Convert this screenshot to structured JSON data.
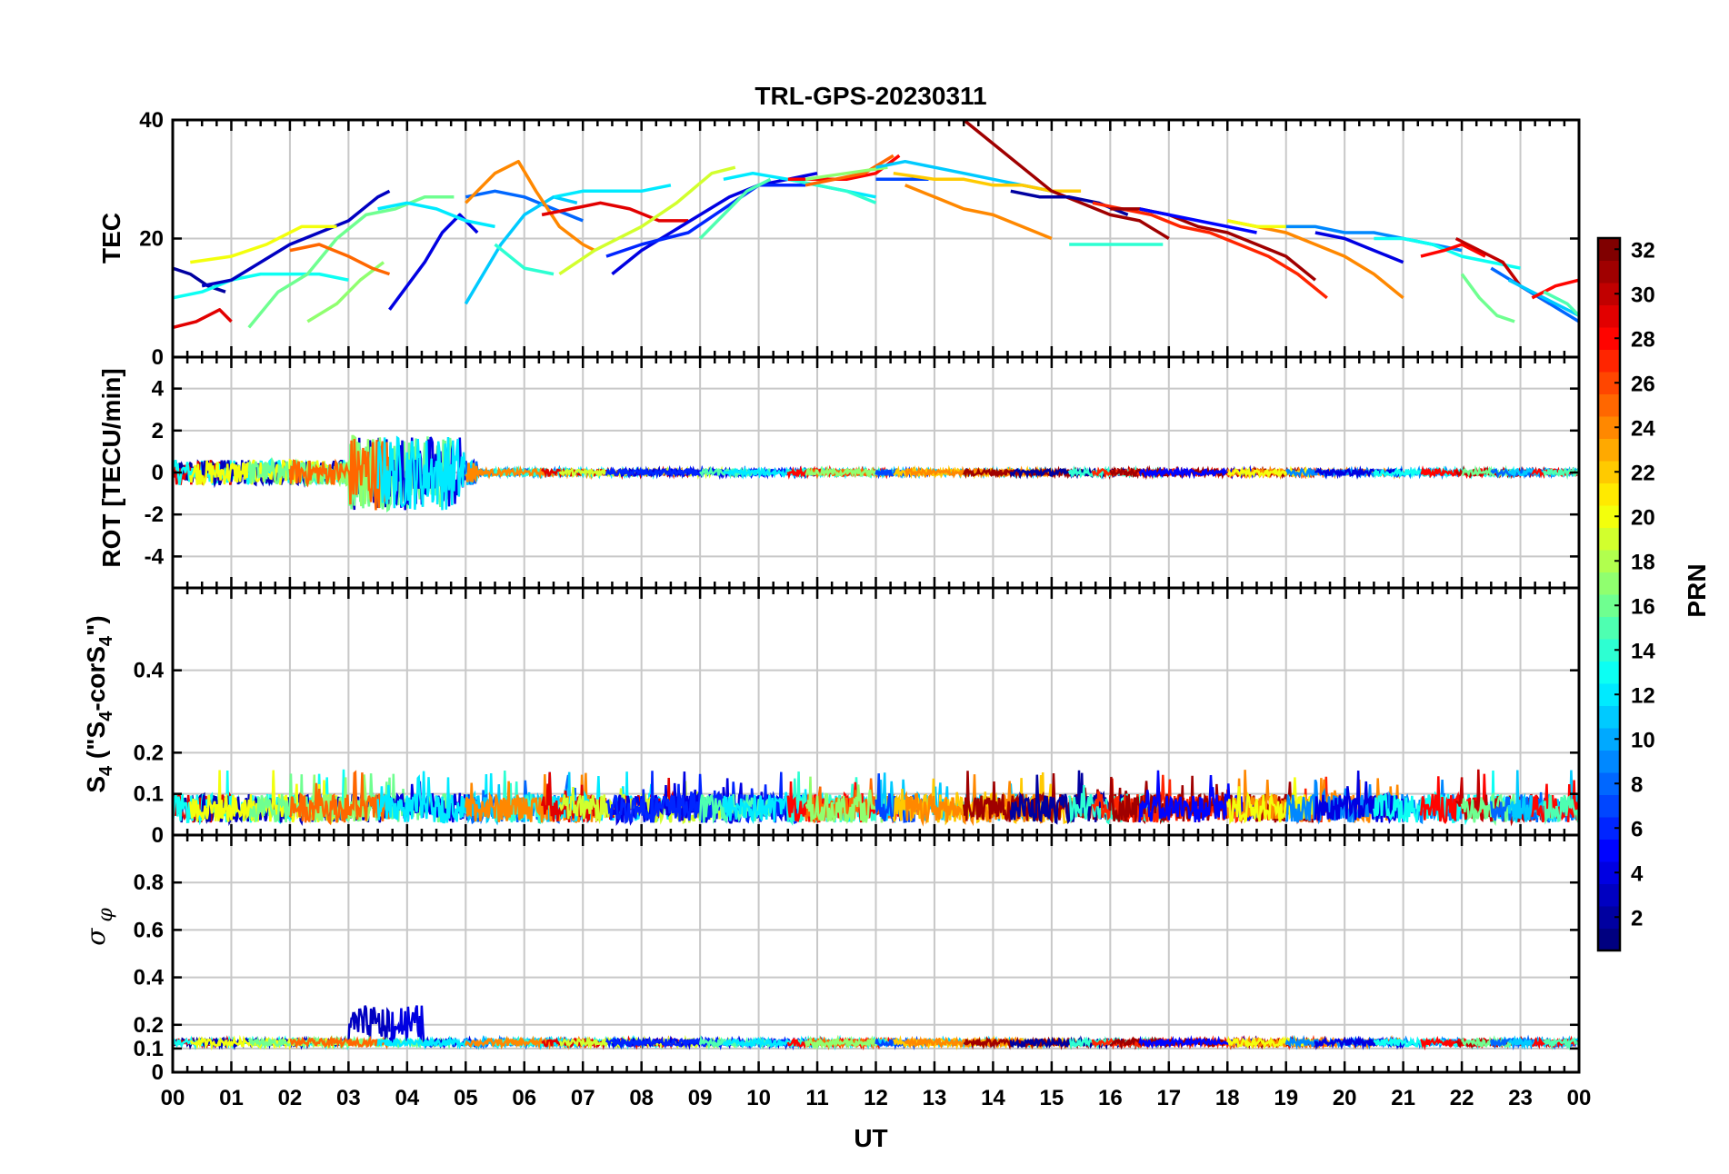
{
  "title": "TRL-GPS-20230311",
  "colorbar": {
    "label": "PRN",
    "min": 1,
    "max": 32,
    "ticks": [
      "2",
      "4",
      "6",
      "8",
      "10",
      "12",
      "14",
      "16",
      "18",
      "20",
      "22",
      "24",
      "26",
      "28",
      "30",
      "32"
    ],
    "colormap": "jet"
  },
  "chart_data": [
    {
      "type": "line",
      "panel": "TEC",
      "ylabel": "TEC",
      "ylim": [
        0,
        40
      ],
      "yticks": [
        "0",
        "20",
        "40"
      ],
      "grid": true,
      "series": [
        {
          "prn": 2,
          "x": [
            0.0,
            0.3,
            0.6,
            0.9
          ],
          "y": [
            15,
            14,
            12,
            11
          ]
        },
        {
          "prn": 29,
          "x": [
            0.0,
            0.4,
            0.8,
            1.0
          ],
          "y": [
            5,
            6,
            8,
            6
          ]
        },
        {
          "prn": 13,
          "x": [
            0.0,
            0.5,
            1.0,
            1.5,
            2.0,
            2.5,
            3.0
          ],
          "y": [
            10,
            11,
            13,
            14,
            14,
            14,
            13
          ]
        },
        {
          "prn": 3,
          "x": [
            0.5,
            1.0,
            1.5,
            2.0,
            2.5,
            3.0,
            3.5,
            3.7
          ],
          "y": [
            12,
            13,
            16,
            19,
            21,
            23,
            27,
            28
          ]
        },
        {
          "prn": 20,
          "x": [
            0.3,
            1.0,
            1.6,
            2.2,
            2.8
          ],
          "y": [
            16,
            17,
            19,
            22,
            22
          ]
        },
        {
          "prn": 16,
          "x": [
            1.3,
            1.8,
            2.3,
            2.8,
            3.3,
            3.8,
            4.3,
            4.8
          ],
          "y": [
            5,
            11,
            14,
            20,
            24,
            25,
            27,
            27
          ]
        },
        {
          "prn": 17,
          "x": [
            2.3,
            2.8,
            3.2,
            3.6
          ],
          "y": [
            6,
            9,
            13,
            16
          ]
        },
        {
          "prn": 25,
          "x": [
            2.0,
            2.5,
            3.0,
            3.4,
            3.7
          ],
          "y": [
            18,
            19,
            17,
            15,
            14
          ]
        },
        {
          "prn": 4,
          "x": [
            3.7,
            4.0,
            4.3,
            4.6,
            4.9,
            5.2
          ],
          "y": [
            8,
            12,
            16,
            21,
            24,
            21
          ]
        },
        {
          "prn": 12,
          "x": [
            3.5,
            4.0,
            4.5,
            5.0,
            5.5
          ],
          "y": [
            25,
            26,
            25,
            23,
            22
          ]
        },
        {
          "prn": 8,
          "x": [
            5.0,
            5.5,
            6.0,
            6.5,
            7.0
          ],
          "y": [
            27,
            28,
            27,
            25,
            23
          ]
        },
        {
          "prn": 11,
          "x": [
            5.0,
            5.3,
            5.6,
            6.0,
            6.5,
            6.9
          ],
          "y": [
            9,
            14,
            19,
            24,
            27,
            26
          ]
        },
        {
          "prn": 14,
          "x": [
            5.5,
            6.0,
            6.5
          ],
          "y": [
            19,
            15,
            14
          ]
        },
        {
          "prn": 24,
          "x": [
            5.0,
            5.5,
            5.9,
            6.2,
            6.6,
            7.0,
            7.2
          ],
          "y": [
            26,
            31,
            33,
            28,
            22,
            19,
            18
          ]
        },
        {
          "prn": 12,
          "x": [
            6.5,
            7.0,
            7.5,
            8.0,
            8.5
          ],
          "y": [
            27,
            28,
            28,
            28,
            29
          ]
        },
        {
          "prn": 29,
          "x": [
            6.3,
            6.8,
            7.3,
            7.8,
            8.3,
            8.8
          ],
          "y": [
            24,
            25,
            26,
            25,
            23,
            23
          ]
        },
        {
          "prn": 19,
          "x": [
            6.6,
            7.2,
            8.0,
            8.6,
            9.2,
            9.6
          ],
          "y": [
            14,
            18,
            22,
            26,
            31,
            32
          ]
        },
        {
          "prn": 4,
          "x": [
            7.5,
            8.0,
            8.5,
            9.0,
            9.5,
            10.0,
            10.5,
            11.0
          ],
          "y": [
            14,
            18,
            21,
            24,
            27,
            29,
            30,
            31
          ]
        },
        {
          "prn": 6,
          "x": [
            7.4,
            8.0,
            8.8,
            9.4,
            10.0,
            10.8
          ],
          "y": [
            17,
            19,
            21,
            25,
            29,
            29
          ]
        },
        {
          "prn": 15,
          "x": [
            9.0,
            9.4,
            9.8,
            10.2
          ],
          "y": [
            20,
            24,
            28,
            30
          ]
        },
        {
          "prn": 12,
          "x": [
            9.4,
            9.9,
            10.5,
            11.0,
            11.5,
            12.0
          ],
          "y": [
            30,
            31,
            30,
            29,
            28,
            27
          ]
        },
        {
          "prn": 14,
          "x": [
            10.5,
            11.0,
            11.5,
            12.0
          ],
          "y": [
            30,
            29,
            28,
            26
          ]
        },
        {
          "prn": 28,
          "x": [
            10.5,
            11.0,
            11.5,
            12.0,
            12.4
          ],
          "y": [
            30,
            30,
            30,
            31,
            34
          ]
        },
        {
          "prn": 25,
          "x": [
            10.8,
            11.3,
            11.8,
            12.3
          ],
          "y": [
            29,
            30,
            31,
            34
          ]
        },
        {
          "prn": 17,
          "x": [
            10.8,
            11.5,
            12.2
          ],
          "y": [
            30,
            31,
            32
          ]
        },
        {
          "prn": 11,
          "x": [
            12.0,
            12.5,
            13.0,
            13.5,
            14.0,
            14.5,
            15.0
          ],
          "y": [
            32,
            33,
            32,
            31,
            30,
            29,
            28
          ]
        },
        {
          "prn": 7,
          "x": [
            12.0,
            12.5,
            12.9
          ],
          "y": [
            30,
            30,
            30
          ]
        },
        {
          "prn": 22,
          "x": [
            12.3,
            13.0,
            13.5,
            14.0,
            14.5,
            15.0,
            15.5
          ],
          "y": [
            31,
            30,
            30,
            29,
            29,
            28,
            28
          ]
        },
        {
          "prn": 24,
          "x": [
            12.5,
            13.0,
            13.5,
            14.0,
            14.5,
            15.0
          ],
          "y": [
            29,
            27,
            25,
            24,
            22,
            20
          ]
        },
        {
          "prn": 31,
          "x": [
            13.5,
            14.0,
            14.5,
            15.0,
            15.5,
            16.0,
            16.5,
            17.0
          ],
          "y": [
            40,
            36,
            32,
            28,
            26,
            24,
            23,
            20
          ]
        },
        {
          "prn": 2,
          "x": [
            14.3,
            14.8,
            15.3,
            15.8,
            16.3
          ],
          "y": [
            28,
            27,
            27,
            26,
            24
          ]
        },
        {
          "prn": 14,
          "x": [
            15.3,
            15.8,
            16.3,
            16.9
          ],
          "y": [
            19,
            19,
            19,
            19
          ]
        },
        {
          "prn": 27,
          "x": [
            15.7,
            16.2,
            16.7,
            17.2,
            17.7,
            18.2,
            18.7,
            19.2,
            19.7
          ],
          "y": [
            26,
            25,
            24,
            22,
            21,
            19,
            17,
            14,
            10
          ]
        },
        {
          "prn": 31,
          "x": [
            16.0,
            16.5,
            17.0,
            17.5,
            18.0,
            18.5,
            19.0,
            19.5
          ],
          "y": [
            25,
            25,
            24,
            22,
            21,
            19,
            17,
            13
          ]
        },
        {
          "prn": 5,
          "x": [
            16.5,
            17.0,
            17.5,
            18.0,
            18.5
          ],
          "y": [
            25,
            24,
            23,
            22,
            21
          ]
        },
        {
          "prn": 24,
          "x": [
            18.0,
            18.5,
            19.0,
            19.5,
            20.0,
            20.5,
            21.0
          ],
          "y": [
            23,
            22,
            21,
            19,
            17,
            14,
            10
          ]
        },
        {
          "prn": 20,
          "x": [
            18.0,
            18.5,
            19.0,
            19.5
          ],
          "y": [
            23,
            22,
            22,
            22
          ]
        },
        {
          "prn": 9,
          "x": [
            19.0,
            19.5,
            20.0,
            20.5,
            21.0,
            21.5,
            22.0
          ],
          "y": [
            22,
            22,
            21,
            21,
            20,
            19,
            18
          ]
        },
        {
          "prn": 4,
          "x": [
            19.5,
            20.0,
            20.5,
            21.0
          ],
          "y": [
            21,
            20,
            18,
            16
          ]
        },
        {
          "prn": 13,
          "x": [
            20.5,
            21.0,
            21.5,
            22.0,
            22.5,
            23.0
          ],
          "y": [
            20,
            20,
            19,
            17,
            16,
            15
          ]
        },
        {
          "prn": 28,
          "x": [
            21.3,
            21.7,
            22.0,
            22.4
          ],
          "y": [
            17,
            18,
            19,
            17
          ]
        },
        {
          "prn": 30,
          "x": [
            21.9,
            22.3,
            22.7,
            23.0,
            23.5
          ],
          "y": [
            20,
            18,
            16,
            12,
            9
          ]
        },
        {
          "prn": 16,
          "x": [
            22.0,
            22.3,
            22.6,
            22.9
          ],
          "y": [
            14,
            10,
            7,
            6
          ]
        },
        {
          "prn": 8,
          "x": [
            22.5,
            23.0,
            23.5,
            24.0
          ],
          "y": [
            15,
            12,
            9,
            6
          ]
        },
        {
          "prn": 11,
          "x": [
            22.8,
            23.2,
            23.6,
            24.0
          ],
          "y": [
            13,
            11,
            9,
            7
          ]
        },
        {
          "prn": 28,
          "x": [
            23.2,
            23.6,
            24.0
          ],
          "y": [
            10,
            12,
            13
          ]
        },
        {
          "prn": 15,
          "x": [
            23.4,
            23.8,
            24.0
          ],
          "y": [
            11,
            9,
            7
          ]
        }
      ]
    },
    {
      "type": "line",
      "panel": "ROT",
      "ylabel": "ROT [TECU/min]",
      "ylim": [
        -5.5,
        5.5
      ],
      "yticks": [
        "-4",
        "-2",
        "0",
        "2",
        "4"
      ],
      "grid": true
    },
    {
      "type": "line",
      "panel": "S4",
      "ylabel": "S4 (\"S4-corS4\")",
      "ylim": [
        0,
        0.6
      ],
      "yticks": [
        "0",
        "0.1",
        "0.2",
        "0.4"
      ],
      "grid": true
    },
    {
      "type": "line",
      "panel": "sigma-phi",
      "ylabel": "σφ",
      "ylim": [
        0,
        1
      ],
      "yticks": [
        "0",
        "0.1",
        "0.2",
        "0.4",
        "0.6",
        "0.8"
      ],
      "grid": true
    }
  ],
  "xaxis": {
    "label": "UT",
    "range": [
      0,
      24
    ],
    "ticks": [
      "00",
      "01",
      "02",
      "03",
      "04",
      "05",
      "06",
      "07",
      "08",
      "09",
      "10",
      "11",
      "12",
      "13",
      "14",
      "15",
      "16",
      "17",
      "18",
      "19",
      "20",
      "21",
      "22",
      "23",
      "00"
    ]
  }
}
